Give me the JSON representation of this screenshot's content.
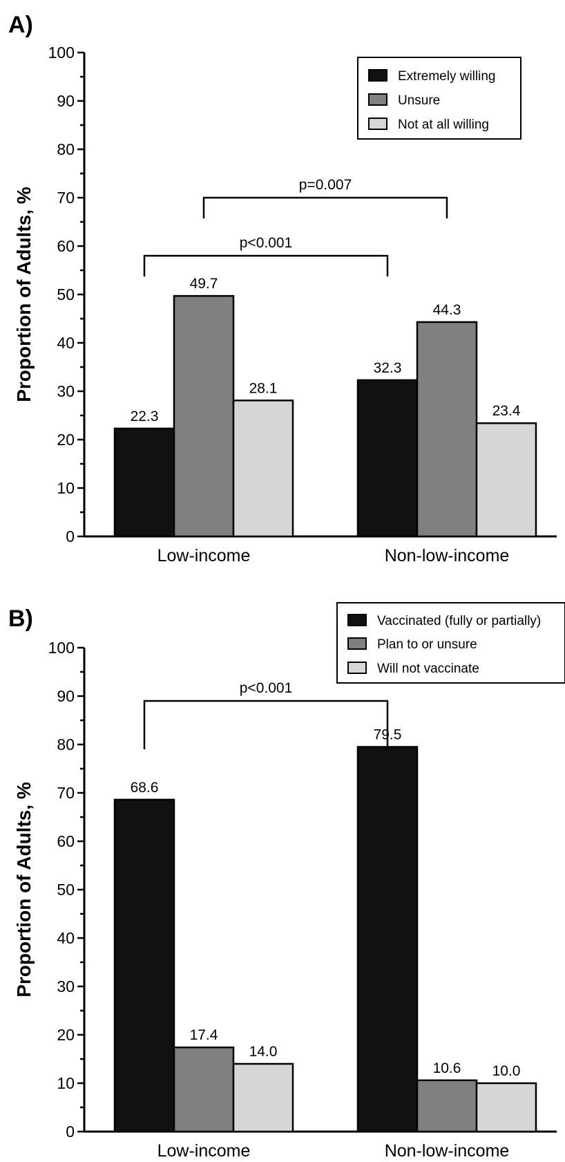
{
  "colors": {
    "black": "#111111",
    "gray": "#808080",
    "lightgray": "#d6d6d6"
  },
  "chart_data": [
    {
      "type": "bar",
      "panel_label": "A)",
      "ylabel": "Proportion of Adults, %",
      "ylim": [
        0,
        100
      ],
      "yticks": [
        "0",
        "10",
        "20",
        "30",
        "40",
        "50",
        "60",
        "70",
        "80",
        "90",
        "100"
      ],
      "categories": [
        "Low-income",
        "Non-low-income"
      ],
      "legend_position": "top-right",
      "grid": false,
      "series": [
        {
          "name": "Extremely willing",
          "color": "black",
          "values": [
            22.3,
            32.3
          ],
          "labels": [
            "22.3",
            "32.3"
          ]
        },
        {
          "name": "Unsure",
          "color": "gray",
          "values": [
            49.7,
            44.3
          ],
          "labels": [
            "49.7",
            "44.3"
          ]
        },
        {
          "name": "Not at all willing",
          "color": "lightgray",
          "values": [
            28.1,
            23.4
          ],
          "labels": [
            "28.1",
            "23.4"
          ]
        }
      ],
      "annotations": [
        {
          "text": "p<0.001",
          "series_index": 0,
          "level": 58
        },
        {
          "text": "p=0.007",
          "series_index": 1,
          "level": 70
        }
      ]
    },
    {
      "type": "bar",
      "panel_label": "B)",
      "ylabel": "Proportion of Adults, %",
      "ylim": [
        0,
        100
      ],
      "yticks": [
        "0",
        "10",
        "20",
        "30",
        "40",
        "50",
        "60",
        "70",
        "80",
        "90",
        "100"
      ],
      "categories": [
        "Low-income",
        "Non-low-income"
      ],
      "legend_position": "top-right",
      "grid": false,
      "series": [
        {
          "name": "Vaccinated (fully or partially)",
          "color": "black",
          "values": [
            68.6,
            79.5
          ],
          "labels": [
            "68.6",
            "79.5"
          ]
        },
        {
          "name": "Plan to or unsure",
          "color": "gray",
          "values": [
            17.4,
            10.6
          ],
          "labels": [
            "17.4",
            "10.6"
          ]
        },
        {
          "name": "Will not vaccinate",
          "color": "lightgray",
          "values": [
            14.0,
            10.0
          ],
          "labels": [
            "14.0",
            "10.0"
          ]
        }
      ],
      "annotations": [
        {
          "text": "p<0.001",
          "series_index": 0,
          "level": 89
        }
      ]
    }
  ]
}
